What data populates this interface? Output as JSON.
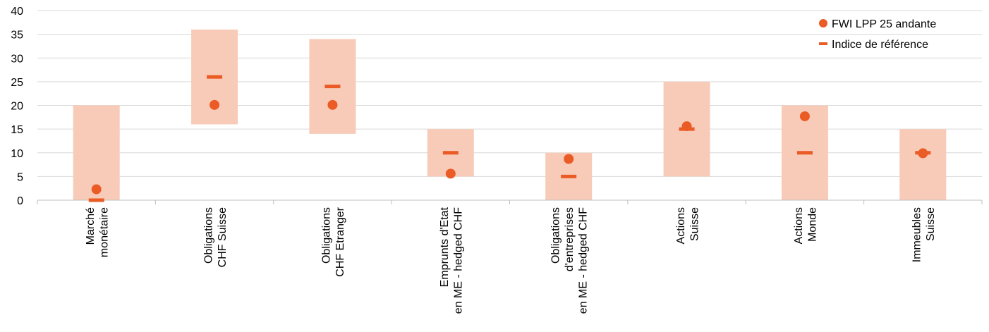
{
  "chart_data": {
    "type": "range-bar-with-markers",
    "title": "",
    "ylim": [
      0,
      40
    ],
    "yticks": [
      0,
      5,
      10,
      15,
      20,
      25,
      30,
      35,
      40
    ],
    "grid": true,
    "legend_position": "top-right",
    "colors": {
      "range": "#f8cbb8",
      "marker": "#ea5b25",
      "grid": "#d9d9d9",
      "axis": "#bfbfbf"
    },
    "categories": [
      [
        "Marché",
        "monétaire"
      ],
      [
        "Obligations",
        "CHF Suisse"
      ],
      [
        "Obligations",
        "CHF Etranger"
      ],
      [
        "Emprunts d'Etat",
        "en ME - hedged CHF"
      ],
      [
        "Obligations",
        "d'entreprises",
        "en ME - hedged CHF"
      ],
      [
        "Actions",
        "Suisse"
      ],
      [
        "Actions",
        "Monde"
      ],
      [
        "Immeubles",
        "Suisse"
      ]
    ],
    "series": [
      {
        "name": "",
        "kind": "range_low",
        "values": [
          0,
          16,
          14,
          5,
          0,
          5,
          0,
          0
        ]
      },
      {
        "name": "",
        "kind": "range_high",
        "values": [
          20,
          36,
          34,
          15,
          10,
          25,
          20,
          15
        ]
      },
      {
        "name": "FWI LPP 25 andante",
        "kind": "dot",
        "values": [
          2.3,
          20.1,
          20.1,
          5.6,
          8.7,
          15.6,
          17.7,
          9.9
        ]
      },
      {
        "name": "Indice de référence",
        "kind": "dash",
        "values": [
          0,
          26,
          24,
          10,
          5,
          15,
          10,
          10
        ]
      }
    ]
  }
}
